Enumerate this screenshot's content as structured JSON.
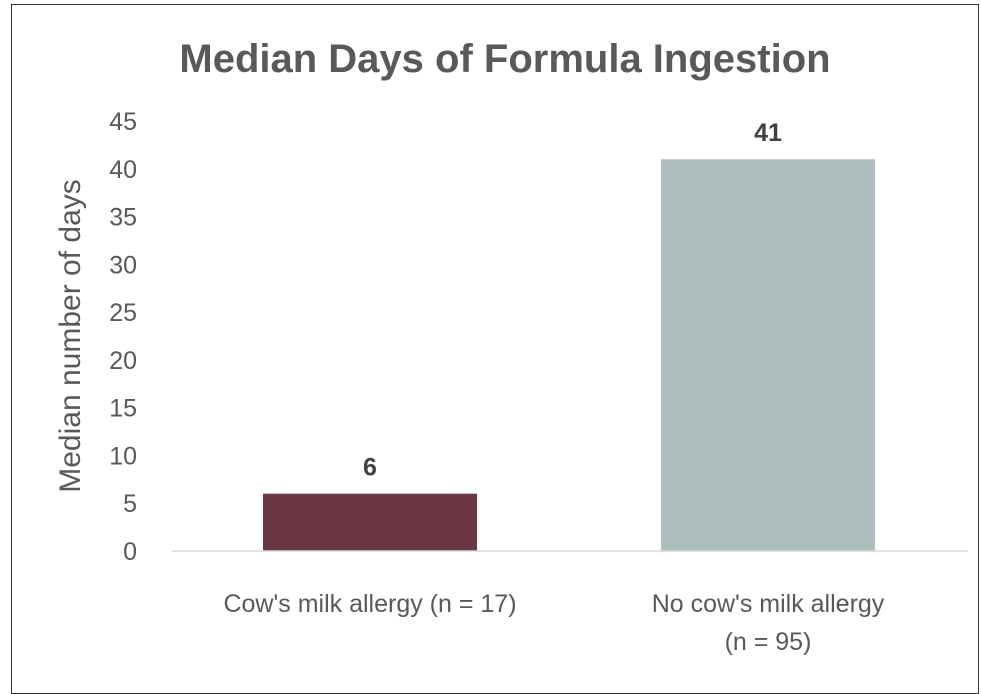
{
  "chart_data": {
    "type": "bar",
    "title": "Median Days of Formula Ingestion",
    "ylabel": "Median number of days",
    "xlabel": "",
    "ylim": [
      0,
      45
    ],
    "ytick_step": 5,
    "categories": [
      [
        "Cow's milk allergy (n = 17)"
      ],
      [
        "No cow's milk allergy",
        "(n = 95)"
      ]
    ],
    "values": [
      6,
      41
    ],
    "data_labels": [
      "6",
      "41"
    ],
    "colors": [
      "#6b3744",
      "#adbfbd"
    ],
    "grid": false,
    "legend": "none"
  }
}
